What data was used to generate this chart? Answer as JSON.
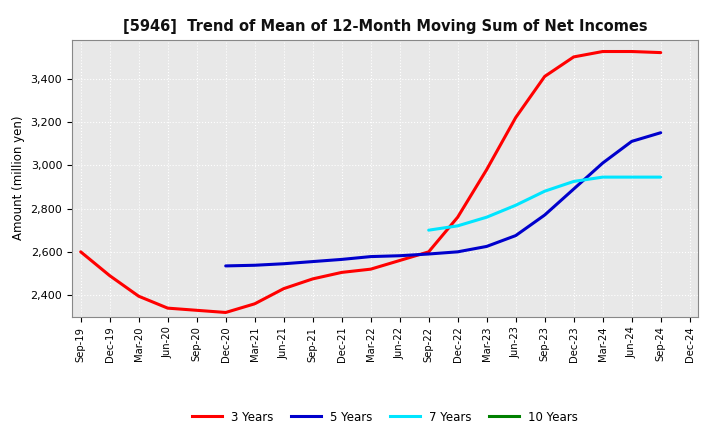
{
  "title": "[5946]  Trend of Mean of 12-Month Moving Sum of Net Incomes",
  "ylabel": "Amount (million yen)",
  "ylim": [
    2300,
    3580
  ],
  "yticks": [
    2400,
    2600,
    2800,
    3000,
    3200,
    3400
  ],
  "background_color": "#ffffff",
  "plot_bg_color": "#e8e8e8",
  "grid_color": "#ffffff",
  "x_labels": [
    "Sep-19",
    "Dec-19",
    "Mar-20",
    "Jun-20",
    "Sep-20",
    "Dec-20",
    "Mar-21",
    "Jun-21",
    "Sep-21",
    "Dec-21",
    "Mar-22",
    "Jun-22",
    "Sep-22",
    "Dec-22",
    "Mar-23",
    "Jun-23",
    "Sep-23",
    "Dec-23",
    "Mar-24",
    "Jun-24",
    "Sep-24",
    "Dec-24"
  ],
  "series": {
    "3 Years": {
      "color": "#ff0000",
      "data_x": [
        0,
        1,
        2,
        3,
        4,
        5,
        6,
        7,
        8,
        9,
        10,
        11,
        12,
        13,
        14,
        15,
        16,
        17,
        18,
        19,
        20
      ],
      "data_y": [
        2600,
        2490,
        2395,
        2340,
        2330,
        2320,
        2360,
        2430,
        2475,
        2505,
        2520,
        2560,
        2600,
        2760,
        2980,
        3220,
        3410,
        3500,
        3525,
        3525,
        3520
      ]
    },
    "5 Years": {
      "color": "#0000cc",
      "data_x": [
        5,
        6,
        7,
        8,
        9,
        10,
        11,
        12,
        13,
        14,
        15,
        16,
        17,
        18,
        19,
        20
      ],
      "data_y": [
        2535,
        2538,
        2545,
        2555,
        2565,
        2578,
        2582,
        2590,
        2600,
        2625,
        2675,
        2770,
        2890,
        3010,
        3110,
        3150
      ]
    },
    "7 Years": {
      "color": "#00e5ff",
      "data_x": [
        12,
        13,
        14,
        15,
        16,
        17,
        18,
        19,
        20
      ],
      "data_y": [
        2700,
        2720,
        2760,
        2815,
        2880,
        2925,
        2945,
        2945,
        2945
      ]
    },
    "10 Years": {
      "color": "#008000",
      "data_x": [],
      "data_y": []
    }
  },
  "legend_labels": [
    "3 Years",
    "5 Years",
    "7 Years",
    "10 Years"
  ],
  "legend_colors": [
    "#ff0000",
    "#0000cc",
    "#00e5ff",
    "#008000"
  ]
}
